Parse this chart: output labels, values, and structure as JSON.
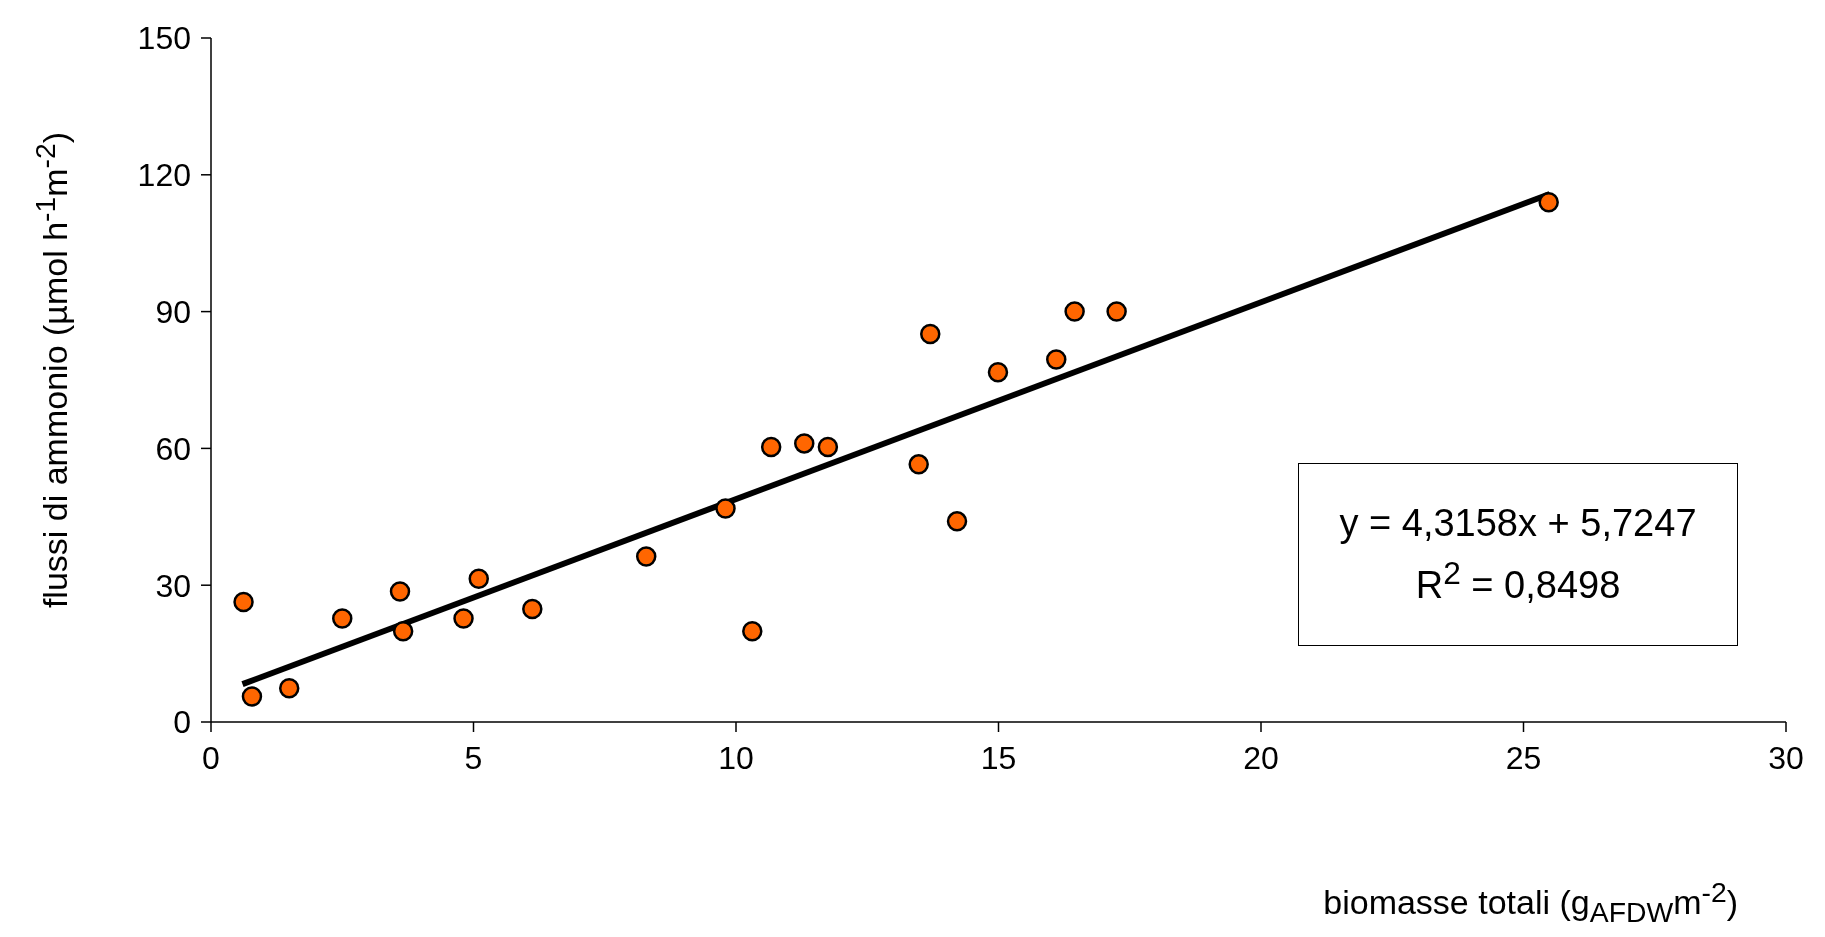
{
  "chart_data": {
    "type": "scatter",
    "xlabel": "biomasse totali (g$_{AFDW}$m$^{-2}$)",
    "ylabel": "flussi di ammonio (µmol h$^{-1}$m$^{-2}$)",
    "xlim": [
      0,
      30
    ],
    "xticks": [
      0,
      5,
      10,
      15,
      20,
      25,
      30
    ],
    "ylim": [
      0,
      150
    ],
    "yticks": [
      0,
      30,
      60,
      90,
      120,
      150
    ],
    "marker": "circle",
    "annotations": [
      "y = 4,3158x + 5,7247",
      "R$^{2}$ = 0,8498"
    ],
    "series": [
      {
        "color": "#ff6600",
        "x": [
          0.62,
          0.78,
          1.49,
          2.5,
          3.6,
          3.66,
          4.81,
          5.1,
          6.12,
          8.29,
          9.8,
          10.31,
          10.67,
          11.3,
          11.75,
          13.48,
          13.7,
          14.21,
          14.99,
          16.1,
          16.45,
          17.25,
          25.48
        ],
        "values": [
          26.3,
          5.6,
          7.4,
          22.7,
          28.6,
          19.9,
          22.7,
          31.4,
          24.8,
          36.3,
          46.8,
          19.9,
          60.3,
          61.1,
          60.3,
          56.5,
          85.1,
          44.0,
          76.7,
          79.5,
          90,
          90,
          114
        ]
      },
      {
        "type": "line",
        "marker": "none",
        "color": "#000000",
        "x": [
          0.6,
          25.5
        ],
        "values": [
          8.3,
          115.8
        ]
      }
    ]
  }
}
